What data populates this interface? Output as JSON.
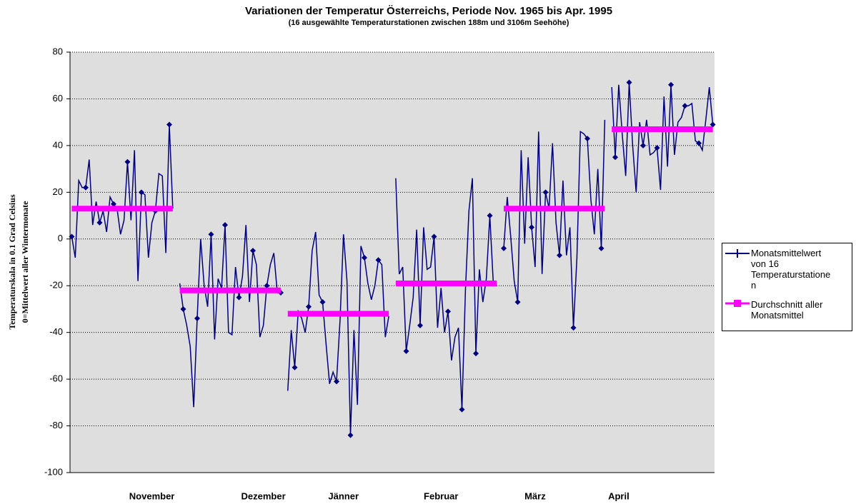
{
  "chart_data": {
    "type": "line",
    "title": "Variationen der Temperatur Österreichs, Periode Nov. 1965 bis Apr. 1995",
    "subtitle": "(16 ausgewählte Temperaturstationen zwischen 188m und 3106m Seehöhe)",
    "y_label": [
      "Temperaturskala in 0.1 Grad Celsius",
      "0=Mittelwert aller Wintermonate"
    ],
    "ylim": [
      -100,
      80
    ],
    "yticks": [
      -100,
      -80,
      -60,
      -40,
      -20,
      0,
      20,
      40,
      60,
      80
    ],
    "grid": true,
    "legend": "right",
    "categories": [
      null,
      null,
      null,
      null,
      null,
      null,
      null,
      null,
      null,
      null,
      null,
      null,
      null,
      null,
      null,
      null,
      null,
      null,
      null,
      null,
      null,
      null,
      null,
      "November",
      null,
      null,
      null,
      null,
      null,
      null,
      null,
      null,
      null,
      null,
      null,
      null,
      null,
      null,
      null,
      null,
      null,
      null,
      null,
      null,
      null,
      null,
      null,
      null,
      null,
      null,
      null,
      null,
      null,
      null,
      null,
      "Dezember",
      null,
      null,
      null,
      null,
      null,
      null,
      null,
      null,
      null,
      null,
      null,
      null,
      null,
      null,
      null,
      null,
      null,
      null,
      null,
      null,
      null,
      null,
      "Jänner",
      null,
      null,
      null,
      null,
      null,
      null,
      null,
      null,
      null,
      null,
      null,
      null,
      null,
      null,
      null,
      null,
      null,
      null,
      null,
      null,
      null,
      null,
      null,
      null,
      null,
      null,
      null,
      "Februar",
      null,
      null,
      null,
      null,
      null,
      null,
      null,
      null,
      null,
      null,
      null,
      null,
      null,
      null,
      null,
      null,
      null,
      null,
      null,
      null,
      null,
      null,
      null,
      null,
      null,
      null,
      "März",
      null,
      null,
      null,
      null,
      null,
      null,
      null,
      null,
      null,
      null,
      null,
      null,
      null,
      null,
      null,
      null,
      null,
      null,
      null,
      null,
      null,
      null,
      null,
      "April",
      null,
      null,
      null,
      null,
      null,
      null,
      null,
      null,
      null,
      null,
      null,
      null,
      null,
      null,
      null,
      null,
      null,
      null,
      null,
      null,
      null,
      null,
      null,
      null,
      null,
      null,
      null
    ],
    "series": [
      {
        "name": "Monatsmittelwert von 16 Temperaturstationen",
        "color": "#000080",
        "values": [
          1,
          -8,
          25,
          22,
          22,
          34,
          6,
          16,
          7,
          12,
          3,
          18,
          15,
          13,
          2,
          8,
          33,
          8,
          38,
          -18,
          20,
          19,
          -8,
          7,
          12,
          28,
          27,
          -6,
          49,
          13,
          null,
          -19,
          -30,
          -37,
          -46,
          -72,
          -34,
          0,
          -20,
          -29,
          2,
          -43,
          -17,
          -21,
          6,
          -40,
          -41,
          -12,
          -25,
          -16,
          6,
          -27,
          -5,
          -11,
          -42,
          -37,
          -20,
          -11,
          -6,
          -23,
          -23,
          null,
          -65,
          -39,
          -55,
          -31,
          -34,
          -40,
          -29,
          -5,
          3,
          -24,
          -27,
          -45,
          -62,
          -57,
          -61,
          -35,
          2,
          -18,
          -84,
          -39,
          -71,
          -3,
          -8,
          -19,
          -26,
          -20,
          -9,
          -11,
          -42,
          -33,
          null,
          26,
          -15,
          -12,
          -48,
          -37,
          -25,
          4,
          -37,
          5,
          -13,
          -12,
          1,
          -38,
          -21,
          -40,
          -31,
          -52,
          -42,
          -38,
          -73,
          -22,
          12,
          26,
          -49,
          -13,
          -27,
          -17,
          10,
          -19,
          -20,
          null,
          -4,
          18,
          1,
          -18,
          -27,
          38,
          -2,
          35,
          5,
          -12,
          46,
          -15,
          20,
          13,
          41,
          7,
          -7,
          25,
          -7,
          5,
          -38,
          -8,
          46,
          45,
          43,
          17,
          2,
          30,
          -4,
          51,
          null,
          65,
          35,
          66,
          45,
          27,
          67,
          40,
          20,
          50,
          40,
          51,
          36,
          37,
          39,
          21,
          61,
          31,
          66,
          36,
          50,
          52,
          57,
          57,
          58,
          42,
          41,
          38,
          51,
          65,
          49
        ]
      },
      {
        "name": "Durchschnitt aller Monatsmittel",
        "color": "#ff00ff",
        "values": [
          13,
          13,
          13,
          13,
          13,
          13,
          13,
          13,
          13,
          13,
          13,
          13,
          13,
          13,
          13,
          13,
          13,
          13,
          13,
          13,
          13,
          13,
          13,
          13,
          13,
          13,
          13,
          13,
          13,
          13,
          null,
          -22,
          -22,
          -22,
          -22,
          -22,
          -22,
          -22,
          -22,
          -22,
          -22,
          -22,
          -22,
          -22,
          -22,
          -22,
          -22,
          -22,
          -22,
          -22,
          -22,
          -22,
          -22,
          -22,
          -22,
          -22,
          -22,
          -22,
          -22,
          -22,
          -22,
          null,
          -32,
          -32,
          -32,
          -32,
          -32,
          -32,
          -32,
          -32,
          -32,
          -32,
          -32,
          -32,
          -32,
          -32,
          -32,
          -32,
          -32,
          -32,
          -32,
          -32,
          -32,
          -32,
          -32,
          -32,
          -32,
          -32,
          -32,
          -32,
          -32,
          -32,
          null,
          -19,
          -19,
          -19,
          -19,
          -19,
          -19,
          -19,
          -19,
          -19,
          -19,
          -19,
          -19,
          -19,
          -19,
          -19,
          -19,
          -19,
          -19,
          -19,
          -19,
          -19,
          -19,
          -19,
          -19,
          -19,
          -19,
          -19,
          -19,
          -19,
          -19,
          null,
          13,
          13,
          13,
          13,
          13,
          13,
          13,
          13,
          13,
          13,
          13,
          13,
          13,
          13,
          13,
          13,
          13,
          13,
          13,
          13,
          13,
          13,
          13,
          13,
          13,
          13,
          13,
          13,
          13,
          13,
          null,
          47,
          47,
          47,
          47,
          47,
          47,
          47,
          47,
          47,
          47,
          47,
          47,
          47,
          47,
          47,
          47,
          47,
          47,
          47,
          47,
          47,
          47,
          47,
          47,
          47,
          47,
          47,
          47,
          47,
          47
        ]
      }
    ]
  }
}
